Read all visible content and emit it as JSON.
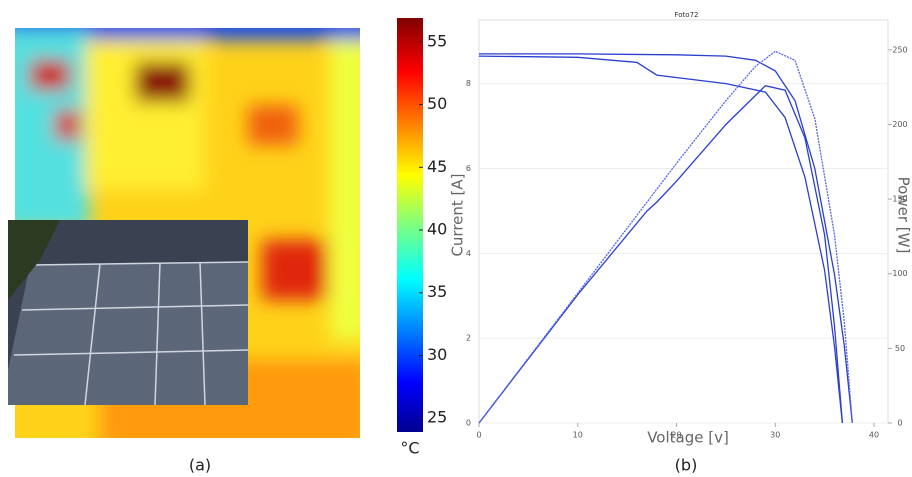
{
  "chart_data": [
    {
      "type": "colorbar",
      "caption": "(a)",
      "label": "°C",
      "clim": [
        23.9,
        56.9
      ],
      "ticks": [
        25,
        30,
        35,
        40,
        45,
        50,
        55
      ]
    },
    {
      "type": "line",
      "caption": "(b)",
      "title": "Foto72",
      "xlabel": "Voltage [v]",
      "ylabel": "Current [A]",
      "y2label": "Power [W]",
      "xlim": [
        0,
        40
      ],
      "xticks": [
        0,
        10,
        20,
        30,
        40
      ],
      "ylim": [
        0,
        9.5
      ],
      "yticks": [
        0,
        2,
        4,
        6,
        8
      ],
      "y2lim": [
        0,
        270
      ],
      "y2ticks": [
        0,
        50,
        100,
        150,
        200,
        250
      ],
      "grid": true,
      "series": [
        {
          "color": "#2a3fd0",
          "x": [
            0,
            10,
            16,
            17,
            18,
            25,
            29,
            31,
            33,
            35,
            36,
            36.8
          ],
          "values": [
            8.65,
            8.62,
            8.5,
            8.35,
            8.2,
            8.0,
            7.8,
            7.2,
            5.8,
            3.6,
            1.8,
            0
          ]
        },
        {
          "color": "#2a3fd0",
          "x": [
            0,
            10,
            20,
            25,
            28,
            30,
            32,
            34,
            36,
            37,
            37.8
          ],
          "values": [
            8.7,
            8.7,
            8.68,
            8.65,
            8.55,
            8.3,
            7.6,
            6.0,
            3.5,
            1.8,
            0
          ]
        },
        {
          "color": "#2a3fd0",
          "axis": "y2",
          "x": [
            0,
            10,
            17,
            18,
            20,
            25,
            29,
            31,
            33,
            35,
            36,
            36.8
          ],
          "values": [
            0,
            86,
            142,
            148,
            162,
            200,
            226,
            223,
            191,
            126,
            65,
            0
          ]
        },
        {
          "color": "#5566e0",
          "axis": "y2",
          "x": [
            0,
            10,
            20,
            25,
            28,
            30,
            32,
            34,
            36,
            37,
            37.8
          ],
          "values": [
            0,
            87,
            174,
            216,
            239,
            249,
            243,
            204,
            126,
            67,
            0
          ]
        }
      ]
    }
  ]
}
